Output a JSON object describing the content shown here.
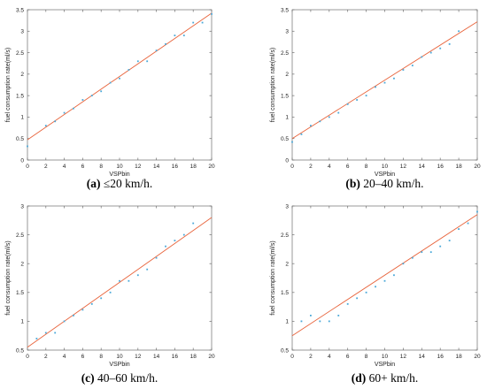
{
  "chart_data": [
    {
      "type": "scatter",
      "caption_label": "(a)",
      "caption_text": " ≤20 km/h.",
      "xlabel": "VSPbin",
      "ylabel": "fuel consumption rate(ml/s)",
      "xlim": [
        0,
        20
      ],
      "ylim": [
        0,
        3.5
      ],
      "xticks": [
        "0",
        "2",
        "4",
        "6",
        "8",
        "10",
        "12",
        "14",
        "16",
        "18",
        "20"
      ],
      "yticks": [
        "0",
        "0.5",
        "1",
        "1.5",
        "2",
        "2.5",
        "3",
        "3.5"
      ],
      "series": [
        {
          "x": [
            0,
            2,
            3,
            4,
            5,
            6,
            7,
            8,
            9,
            10,
            11,
            12,
            13,
            14,
            15,
            16,
            17,
            18,
            19,
            20
          ],
          "y": [
            0.32,
            0.8,
            0.9,
            1.1,
            1.2,
            1.4,
            1.5,
            1.6,
            1.8,
            1.9,
            2.1,
            2.3,
            2.3,
            2.55,
            2.7,
            2.9,
            2.9,
            3.2,
            3.2,
            3.4
          ]
        }
      ],
      "fit": {
        "x": [
          0,
          20
        ],
        "y": [
          0.47,
          3.42
        ]
      }
    },
    {
      "type": "scatter",
      "caption_label": "(b)",
      "caption_text": " 20–40 km/h.",
      "xlabel": "VSPbin",
      "ylabel": "fuel consumption rate(ml/s)",
      "xlim": [
        0,
        20
      ],
      "ylim": [
        0,
        3.5
      ],
      "xticks": [
        "0",
        "2",
        "4",
        "6",
        "8",
        "10",
        "12",
        "14",
        "16",
        "18",
        "20"
      ],
      "yticks": [
        "0",
        "0.5",
        "1",
        "1.5",
        "2",
        "2.5",
        "3",
        "3.5"
      ],
      "series": [
        {
          "x": [
            0,
            1,
            2,
            3,
            4,
            5,
            6,
            7,
            8,
            9,
            10,
            11,
            12,
            13,
            14,
            15,
            16,
            17,
            18
          ],
          "y": [
            0.42,
            0.6,
            0.8,
            0.9,
            1.0,
            1.1,
            1.3,
            1.4,
            1.5,
            1.7,
            1.8,
            1.9,
            2.1,
            2.2,
            2.4,
            2.5,
            2.6,
            2.7,
            3.0
          ]
        }
      ],
      "fit": {
        "x": [
          0,
          20
        ],
        "y": [
          0.5,
          3.22
        ]
      }
    },
    {
      "type": "scatter",
      "caption_label": "(c)",
      "caption_text": " 40–60 km/h.",
      "xlabel": "VSPbin",
      "ylabel": "fuel consumption rate(ml/s)",
      "xlim": [
        0,
        20
      ],
      "ylim": [
        0.5,
        3
      ],
      "xticks": [
        "0",
        "2",
        "4",
        "6",
        "8",
        "10",
        "12",
        "14",
        "16",
        "18",
        "20"
      ],
      "yticks": [
        "0.5",
        "1",
        "1.5",
        "2",
        "2.5",
        "3"
      ],
      "series": [
        {
          "x": [
            1,
            2,
            3,
            4,
            5,
            6,
            7,
            8,
            9,
            10,
            11,
            12,
            13,
            14,
            15,
            16,
            17,
            18
          ],
          "y": [
            0.7,
            0.8,
            0.8,
            1.0,
            1.1,
            1.2,
            1.3,
            1.4,
            1.5,
            1.7,
            1.7,
            1.8,
            1.9,
            2.1,
            2.3,
            2.4,
            2.5,
            2.7
          ]
        }
      ],
      "fit": {
        "x": [
          0,
          20
        ],
        "y": [
          0.55,
          2.8
        ]
      }
    },
    {
      "type": "scatter",
      "caption_label": "(d)",
      "caption_text": " 60+ km/h.",
      "xlabel": "VSPbin",
      "ylabel": "fuel consumption rate(ml/s)",
      "xlim": [
        0,
        20
      ],
      "ylim": [
        0.5,
        3
      ],
      "xticks": [
        "0",
        "2",
        "4",
        "6",
        "8",
        "10",
        "12",
        "14",
        "16",
        "18",
        "20"
      ],
      "yticks": [
        "0.5",
        "1",
        "1.5",
        "2",
        "2.5",
        "3"
      ],
      "series": [
        {
          "x": [
            1,
            2,
            3,
            4,
            5,
            6,
            7,
            8,
            9,
            10,
            11,
            12,
            13,
            14,
            15,
            16,
            17,
            18,
            19,
            20
          ],
          "y": [
            1.0,
            1.1,
            1.0,
            1.0,
            1.1,
            1.3,
            1.4,
            1.5,
            1.6,
            1.7,
            1.8,
            2.0,
            2.1,
            2.2,
            2.2,
            2.3,
            2.4,
            2.6,
            2.7,
            2.9
          ]
        }
      ],
      "fit": {
        "x": [
          0,
          20
        ],
        "y": [
          0.75,
          2.85
        ]
      }
    }
  ],
  "style": {
    "point_color": "#4aa8d8",
    "fit_color": "#e8643c",
    "axis_color": "#6e6e6e"
  }
}
